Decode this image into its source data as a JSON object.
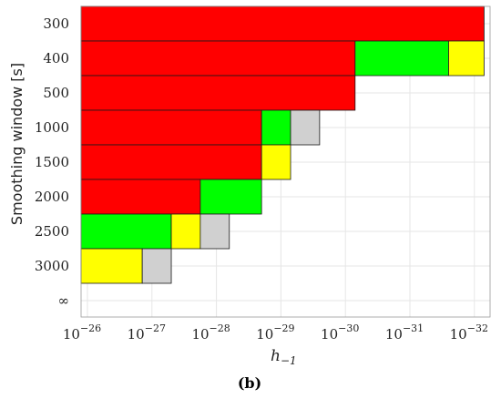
{
  "chart_data": {
    "type": "heatmap",
    "title": "",
    "xlabel_main": "h",
    "xlabel_sub": "−1",
    "ylabel": "Smoothing window [s]",
    "caption": "(b)",
    "x_ticks": [
      {
        "exp": -26,
        "base": "10",
        "sup": "−26"
      },
      {
        "exp": -27,
        "base": "10",
        "sup": "−27"
      },
      {
        "exp": -28,
        "base": "10",
        "sup": "−28"
      },
      {
        "exp": -29,
        "base": "10",
        "sup": "−29"
      },
      {
        "exp": -30,
        "base": "10",
        "sup": "−30"
      },
      {
        "exp": -31,
        "base": "10",
        "sup": "−31"
      },
      {
        "exp": -32,
        "base": "10",
        "sup": "−32"
      }
    ],
    "y_categories": [
      "300",
      "400",
      "500",
      "1000",
      "1500",
      "2000",
      "2500",
      "3000",
      "∞"
    ],
    "colors": {
      "red": "#ff0000",
      "green": "#00ff00",
      "yellow": "#ffff00",
      "gray": "#d0d0d0"
    },
    "grid": true,
    "rows": [
      {
        "window": "300",
        "segments": [
          {
            "from": -25.9,
            "to": -32.15,
            "color": "red"
          }
        ]
      },
      {
        "window": "400",
        "segments": [
          {
            "from": -25.9,
            "to": -30.15,
            "color": "red"
          },
          {
            "from": -30.15,
            "to": -31.6,
            "color": "green"
          },
          {
            "from": -31.6,
            "to": -32.15,
            "color": "yellow"
          }
        ]
      },
      {
        "window": "500",
        "segments": [
          {
            "from": -25.9,
            "to": -30.15,
            "color": "red"
          }
        ]
      },
      {
        "window": "1000",
        "segments": [
          {
            "from": -25.9,
            "to": -28.7,
            "color": "red"
          },
          {
            "from": -28.7,
            "to": -29.15,
            "color": "green"
          },
          {
            "from": -29.15,
            "to": -29.6,
            "color": "gray"
          }
        ]
      },
      {
        "window": "1500",
        "segments": [
          {
            "from": -25.9,
            "to": -28.7,
            "color": "red"
          },
          {
            "from": -28.7,
            "to": -29.15,
            "color": "yellow"
          }
        ]
      },
      {
        "window": "2000",
        "segments": [
          {
            "from": -25.9,
            "to": -27.75,
            "color": "red"
          },
          {
            "from": -27.75,
            "to": -28.7,
            "color": "green"
          }
        ]
      },
      {
        "window": "2500",
        "segments": [
          {
            "from": -25.9,
            "to": -27.3,
            "color": "green"
          },
          {
            "from": -27.3,
            "to": -27.75,
            "color": "yellow"
          },
          {
            "from": -27.75,
            "to": -28.2,
            "color": "gray"
          }
        ]
      },
      {
        "window": "3000",
        "segments": [
          {
            "from": -25.9,
            "to": -26.85,
            "color": "yellow"
          },
          {
            "from": -26.85,
            "to": -27.3,
            "color": "gray"
          }
        ]
      },
      {
        "window": "∞",
        "segments": []
      }
    ]
  }
}
